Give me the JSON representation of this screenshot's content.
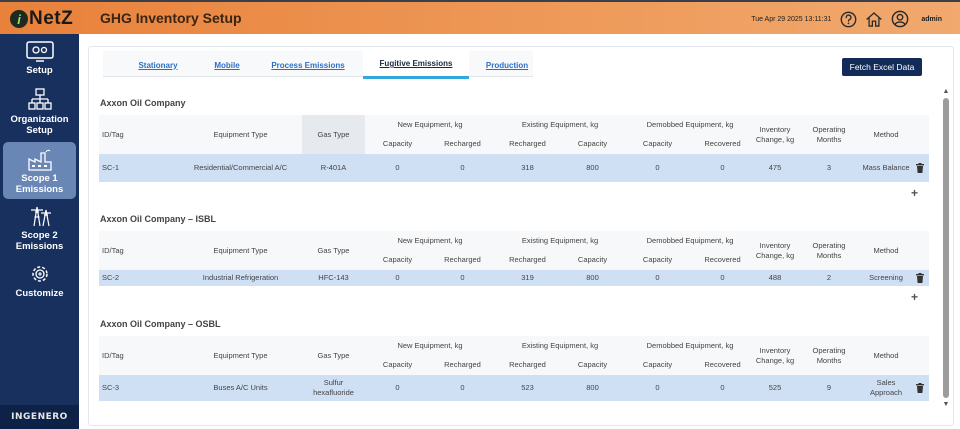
{
  "header": {
    "logo_letter": "i",
    "logo_text": "NetZ",
    "title": "GHG Inventory Setup",
    "datetime": "Tue Apr 29 2025 13:11:31",
    "user": "admin"
  },
  "sidebar": {
    "items": [
      {
        "label": "Setup",
        "icon": "setup-icon"
      },
      {
        "label": "Organization Setup",
        "icon": "organization-icon"
      },
      {
        "label": "Scope 1 Emissions",
        "icon": "factory-icon"
      },
      {
        "label": "Scope 2 Emissions",
        "icon": "power-tower-icon"
      },
      {
        "label": "Customize",
        "icon": "gear-icon"
      }
    ],
    "active_index": 2,
    "footer_logo": "INGENERO"
  },
  "tabs": [
    {
      "label": "Stationary"
    },
    {
      "label": "Mobile"
    },
    {
      "label": "Process Emissions"
    },
    {
      "label": "Fugitive Emissions"
    },
    {
      "label": "Production"
    }
  ],
  "active_tab": 3,
  "fetch_button": "Fetch Excel Data",
  "headers": {
    "id": "ID/Tag",
    "equipment": "Equipment Type",
    "gas": "Gas Type",
    "new_group": "New Equipment, kg",
    "existing_group": "Existing Equipment, kg",
    "demob_group": "Demobbed Equipment, kg",
    "capacity": "Capacity",
    "recharged": "Recharged",
    "recovered": "Recovered",
    "inventory": "Inventory Change, kg",
    "months": "Operating Months",
    "method": "Method"
  },
  "sections": [
    {
      "company": "Axxon Oil Company",
      "rows": [
        {
          "id": "SC-1",
          "equipment": "Residential/Commercial A/C",
          "gas": "R-401A",
          "new_capacity": "0",
          "new_recharged": "0",
          "ex_recharged": "318",
          "ex_capacity": "800",
          "dem_capacity": "0",
          "dem_recovered": "0",
          "inventory": "475",
          "months": "3",
          "method": "Mass Balance"
        }
      ]
    },
    {
      "company": "Axxon Oil Company – ISBL",
      "rows": [
        {
          "id": "SC-2",
          "equipment": "Industrial Refrigeration",
          "gas": "HFC-143",
          "new_capacity": "0",
          "new_recharged": "0",
          "ex_recharged": "319",
          "ex_capacity": "800",
          "dem_capacity": "0",
          "dem_recovered": "0",
          "inventory": "488",
          "months": "2",
          "method": "Screening"
        }
      ]
    },
    {
      "company": "Axxon Oil Company – OSBL",
      "rows": [
        {
          "id": "SC-3",
          "equipment": "Buses A/C Units",
          "gas": "Sulfur hexafluoride",
          "new_capacity": "0",
          "new_recharged": "0",
          "ex_recharged": "523",
          "ex_capacity": "800",
          "dem_capacity": "0",
          "dem_recovered": "0",
          "inventory": "525",
          "months": "9",
          "method": "Sales Approach"
        }
      ]
    }
  ],
  "add_row_symbol": "+",
  "colors": {
    "header_orange": "#e8813a",
    "sidebar_navy": "#17305e",
    "row_blue": "#cfe0f4",
    "tab_accent": "#33a6dc"
  }
}
